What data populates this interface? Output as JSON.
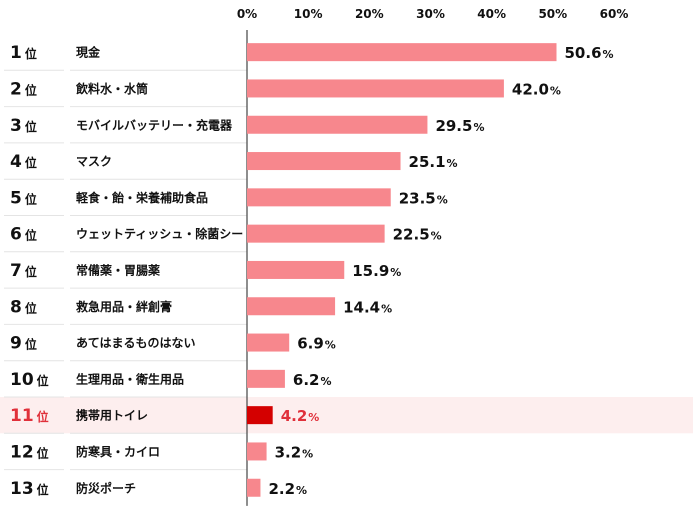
{
  "chart_data": {
    "type": "bar",
    "orientation": "horizontal",
    "title": "",
    "xlabel": "",
    "ylabel": "",
    "xlim": [
      0,
      60
    ],
    "ticks": [
      "0%",
      "10%",
      "20%",
      "30%",
      "40%",
      "50%",
      "60%"
    ],
    "rank_suffix": "位",
    "categories": [
      {
        "rank": "1",
        "label": "現金",
        "value": 50.6,
        "value_text": "50.6",
        "unit": "%"
      },
      {
        "rank": "2",
        "label": "飲料水・水筒",
        "value": 42.0,
        "value_text": "42.0",
        "unit": "%"
      },
      {
        "rank": "3",
        "label": "モバイルバッテリー・充電器",
        "value": 29.5,
        "value_text": "29.5",
        "unit": "%"
      },
      {
        "rank": "4",
        "label": "マスク",
        "value": 25.1,
        "value_text": "25.1",
        "unit": "%"
      },
      {
        "rank": "5",
        "label": "軽食・飴・栄養補助食品",
        "value": 23.5,
        "value_text": "23.5",
        "unit": "%"
      },
      {
        "rank": "6",
        "label": "ウェットティッシュ・除菌シート",
        "value": 22.5,
        "value_text": "22.5",
        "unit": "%"
      },
      {
        "rank": "7",
        "label": "常備薬・胃腸薬",
        "value": 15.9,
        "value_text": "15.9",
        "unit": "%"
      },
      {
        "rank": "8",
        "label": "救急用品・絆創膏",
        "value": 14.4,
        "value_text": "14.4",
        "unit": "%"
      },
      {
        "rank": "9",
        "label": "あてはまるものはない",
        "value": 6.9,
        "value_text": "6.9",
        "unit": "%"
      },
      {
        "rank": "10",
        "label": "生理用品・衛生用品",
        "value": 6.2,
        "value_text": "6.2",
        "unit": "%"
      },
      {
        "rank": "11",
        "label": "携帯用トイレ",
        "value": 4.2,
        "value_text": "4.2",
        "unit": "%",
        "highlight": true
      },
      {
        "rank": "12",
        "label": "防寒具・カイロ",
        "value": 3.2,
        "value_text": "3.2",
        "unit": "%"
      },
      {
        "rank": "13",
        "label": "防災ポーチ",
        "value": 2.2,
        "value_text": "2.2",
        "unit": "%"
      }
    ],
    "grid": false,
    "legend": "none",
    "colors": {
      "bar": "#f7878d",
      "highlight_bar": "#d40000",
      "highlight_text": "#e0303a",
      "highlight_row_bg": "#fdeeee",
      "separator": "#e4e4e4",
      "axis": "#444444",
      "text": "#111111"
    }
  }
}
